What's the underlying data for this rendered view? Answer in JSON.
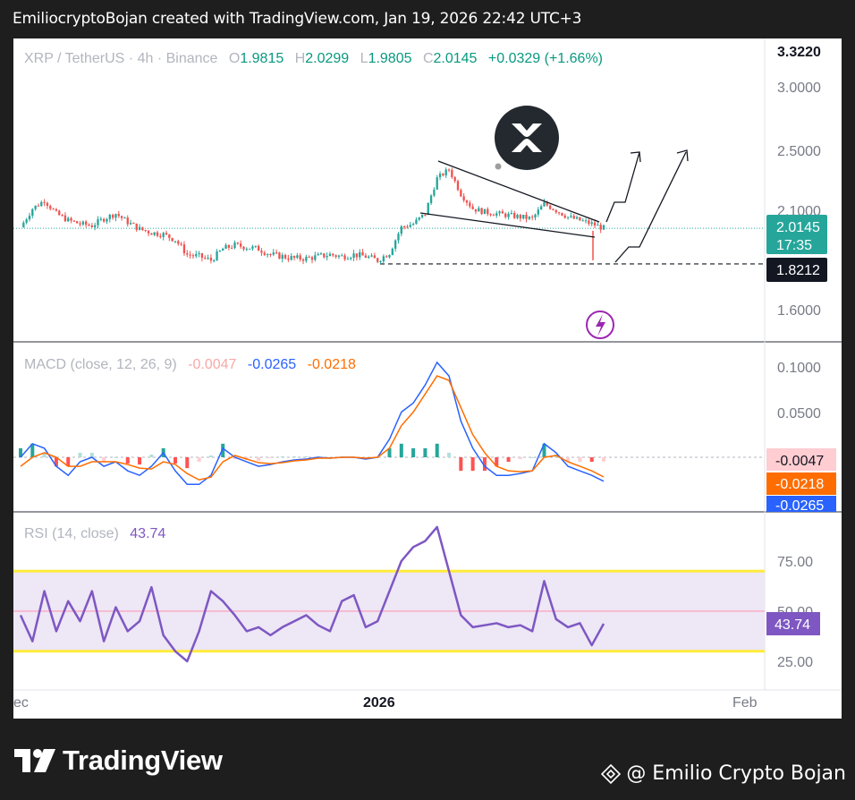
{
  "header": {
    "text": "EmiliocryptoBojan created with TradingView.com, Jan 19, 2026 22:42 UTC+3"
  },
  "legend": {
    "symbol": "XRP / TetherUS · 4h · Binance",
    "o_label": "O",
    "o": "1.9815",
    "h_label": "H",
    "h": "2.0299",
    "l_label": "L",
    "l": "1.9805",
    "c_label": "C",
    "c": "2.0145",
    "change": "+0.0329 (+1.66%)"
  },
  "price_axis": {
    "top_label": "3.3220",
    "ticks": [
      "3.0000",
      "2.5000",
      "2.1000",
      "1.6000"
    ]
  },
  "price_tags": {
    "last": "2.0145",
    "countdown": "17:35",
    "level": "1.8212"
  },
  "macd": {
    "title": "MACD (close, 12, 26, 9)",
    "hist": "-0.0047",
    "macd": "-0.0265",
    "signal": "-0.0218",
    "ticks": [
      "0.1000",
      "0.0500"
    ],
    "tags": {
      "hist": "-0.0047",
      "signal": "-0.0218",
      "macd": "-0.0265"
    }
  },
  "rsi": {
    "title": "RSI (14, close)",
    "value": "43.74",
    "ticks": [
      "75.00",
      "50.00",
      "25.00"
    ],
    "tag": "43.74"
  },
  "time_axis": [
    "ec",
    "2026",
    "Feb"
  ],
  "footer": {
    "brand": "TradingView",
    "author": "@ Emilio Crypto Bojan"
  },
  "colors": {
    "up": "#26a69a",
    "down": "#ef5350",
    "macd": "#2962ff",
    "signal": "#ff6d00",
    "rsi": "#7e57c2",
    "rsi_band": "#ede7f6",
    "rsi_levels": "#ffeb3b"
  },
  "chart_data": [
    {
      "type": "candlestick",
      "title": "XRP / TetherUS · 4h · Binance",
      "x_ticks": [
        "ec",
        "2026",
        "Feb"
      ],
      "ylim": [
        1.5,
        3.4
      ],
      "scale": "log",
      "last_close": 2.0145,
      "horizontal_level": 1.8212,
      "close_path": [
        [
          "2025-12-01",
          2.02
        ],
        [
          "2025-12-02",
          2.13
        ],
        [
          "2025-12-03",
          2.18
        ],
        [
          "2025-12-04",
          2.1
        ],
        [
          "2025-12-05",
          2.06
        ],
        [
          "2025-12-06",
          2.04
        ],
        [
          "2025-12-07",
          2.03
        ],
        [
          "2025-12-08",
          2.07
        ],
        [
          "2025-12-09",
          2.1
        ],
        [
          "2025-12-10",
          2.05
        ],
        [
          "2025-12-11",
          2.01
        ],
        [
          "2025-12-12",
          1.99
        ],
        [
          "2025-12-13",
          1.98
        ],
        [
          "2025-12-14",
          1.95
        ],
        [
          "2025-12-15",
          1.87
        ],
        [
          "2025-12-16",
          1.86
        ],
        [
          "2025-12-17",
          1.84
        ],
        [
          "2025-12-18",
          1.9
        ],
        [
          "2025-12-19",
          1.92
        ],
        [
          "2025-12-20",
          1.91
        ],
        [
          "2025-12-21",
          1.9
        ],
        [
          "2025-12-22",
          1.87
        ],
        [
          "2025-12-23",
          1.86
        ],
        [
          "2025-12-24",
          1.85
        ],
        [
          "2025-12-25",
          1.85
        ],
        [
          "2025-12-26",
          1.86
        ],
        [
          "2025-12-27",
          1.87
        ],
        [
          "2025-12-28",
          1.86
        ],
        [
          "2025-12-29",
          1.87
        ],
        [
          "2025-12-30",
          1.86
        ],
        [
          "2025-12-31",
          1.84
        ],
        [
          "2026-01-01",
          1.88
        ],
        [
          "2026-01-02",
          2.02
        ],
        [
          "2026-01-03",
          2.04
        ],
        [
          "2026-01-04",
          2.1
        ],
        [
          "2026-01-05",
          2.32
        ],
        [
          "2026-01-06",
          2.38
        ],
        [
          "2026-01-07",
          2.22
        ],
        [
          "2026-01-08",
          2.13
        ],
        [
          "2026-01-09",
          2.11
        ],
        [
          "2026-01-10",
          2.1
        ],
        [
          "2026-01-11",
          2.09
        ],
        [
          "2026-01-12",
          2.08
        ],
        [
          "2026-01-13",
          2.07
        ],
        [
          "2026-01-14",
          2.16
        ],
        [
          "2026-01-15",
          2.12
        ],
        [
          "2026-01-16",
          2.08
        ],
        [
          "2026-01-17",
          2.06
        ],
        [
          "2026-01-18",
          2.04
        ],
        [
          "2026-01-19",
          2.0145
        ]
      ]
    },
    {
      "type": "line",
      "title": "MACD (close, 12, 26, 9)",
      "ylim": [
        -0.05,
        0.12
      ],
      "series": [
        {
          "name": "MACD",
          "values": [
            0.0,
            0.015,
            0.01,
            -0.01,
            -0.02,
            -0.005,
            0.0,
            -0.01,
            -0.005,
            -0.015,
            -0.02,
            -0.01,
            0.005,
            -0.015,
            -0.03,
            -0.03,
            -0.02,
            0.01,
            0.0,
            -0.005,
            -0.01,
            -0.008,
            -0.005,
            -0.003,
            -0.002,
            0.0,
            -0.001,
            0.0,
            0.0,
            -0.002,
            0.0,
            0.02,
            0.05,
            0.06,
            0.08,
            0.105,
            0.09,
            0.04,
            0.01,
            -0.01,
            -0.02,
            -0.02,
            -0.018,
            -0.015,
            0.015,
            0.005,
            -0.01,
            -0.015,
            -0.02,
            -0.0265
          ]
        },
        {
          "name": "Signal",
          "values": [
            -0.01,
            0.0,
            0.005,
            0.0,
            -0.01,
            -0.01,
            -0.005,
            -0.005,
            -0.005,
            -0.008,
            -0.012,
            -0.013,
            -0.005,
            -0.008,
            -0.018,
            -0.025,
            -0.022,
            -0.005,
            0.002,
            -0.002,
            -0.006,
            -0.007,
            -0.006,
            -0.004,
            -0.003,
            -0.001,
            -0.001,
            0.0,
            0.0,
            -0.001,
            0.0,
            0.01,
            0.035,
            0.05,
            0.07,
            0.09,
            0.085,
            0.055,
            0.025,
            0.005,
            -0.01,
            -0.015,
            -0.016,
            -0.015,
            0.0,
            0.002,
            -0.005,
            -0.01,
            -0.015,
            -0.0218
          ]
        }
      ]
    },
    {
      "type": "line",
      "title": "RSI (14, close)",
      "ylim": [
        15,
        100
      ],
      "levels": [
        70,
        50,
        30
      ],
      "series": [
        {
          "name": "RSI",
          "values": [
            48,
            35,
            60,
            40,
            55,
            45,
            60,
            35,
            52,
            40,
            45,
            62,
            38,
            30,
            25,
            40,
            60,
            55,
            48,
            40,
            42,
            38,
            42,
            45,
            48,
            43,
            40,
            55,
            58,
            42,
            45,
            60,
            75,
            82,
            85,
            92,
            70,
            48,
            42,
            43,
            44,
            42,
            43,
            40,
            65,
            46,
            42,
            44,
            33,
            43.74
          ]
        }
      ]
    }
  ]
}
